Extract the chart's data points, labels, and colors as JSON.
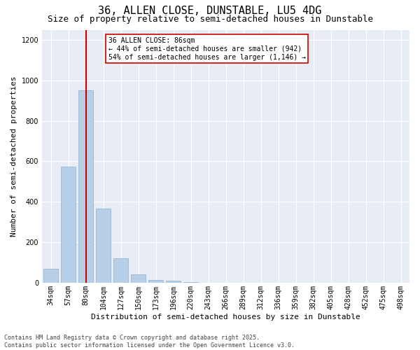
{
  "title": "36, ALLEN CLOSE, DUNSTABLE, LU5 4DG",
  "subtitle": "Size of property relative to semi-detached houses in Dunstable",
  "xlabel": "Distribution of semi-detached houses by size in Dunstable",
  "ylabel": "Number of semi-detached properties",
  "categories": [
    "34sqm",
    "57sqm",
    "80sqm",
    "104sqm",
    "127sqm",
    "150sqm",
    "173sqm",
    "196sqm",
    "220sqm",
    "243sqm",
    "266sqm",
    "289sqm",
    "312sqm",
    "336sqm",
    "359sqm",
    "382sqm",
    "405sqm",
    "428sqm",
    "452sqm",
    "475sqm",
    "498sqm"
  ],
  "values": [
    70,
    575,
    950,
    365,
    120,
    40,
    15,
    10,
    2,
    0,
    0,
    0,
    0,
    0,
    0,
    0,
    0,
    0,
    0,
    0,
    0
  ],
  "bar_color": "#b8cfe8",
  "bar_edge_color": "#8ab0d4",
  "vline_color": "#cc0000",
  "annotation_title": "36 ALLEN CLOSE: 86sqm",
  "annotation_line1": "← 44% of semi-detached houses are smaller (942)",
  "annotation_line2": "54% of semi-detached houses are larger (1,146) →",
  "annotation_box_color": "#cc0000",
  "ylim": [
    0,
    1250
  ],
  "yticks": [
    0,
    200,
    400,
    600,
    800,
    1000,
    1200
  ],
  "background_color": "#e8edf5",
  "footer_line1": "Contains HM Land Registry data © Crown copyright and database right 2025.",
  "footer_line2": "Contains public sector information licensed under the Open Government Licence v3.0.",
  "title_fontsize": 11,
  "subtitle_fontsize": 9,
  "axis_label_fontsize": 8,
  "tick_fontsize": 7,
  "annotation_fontsize": 7,
  "footer_fontsize": 6
}
